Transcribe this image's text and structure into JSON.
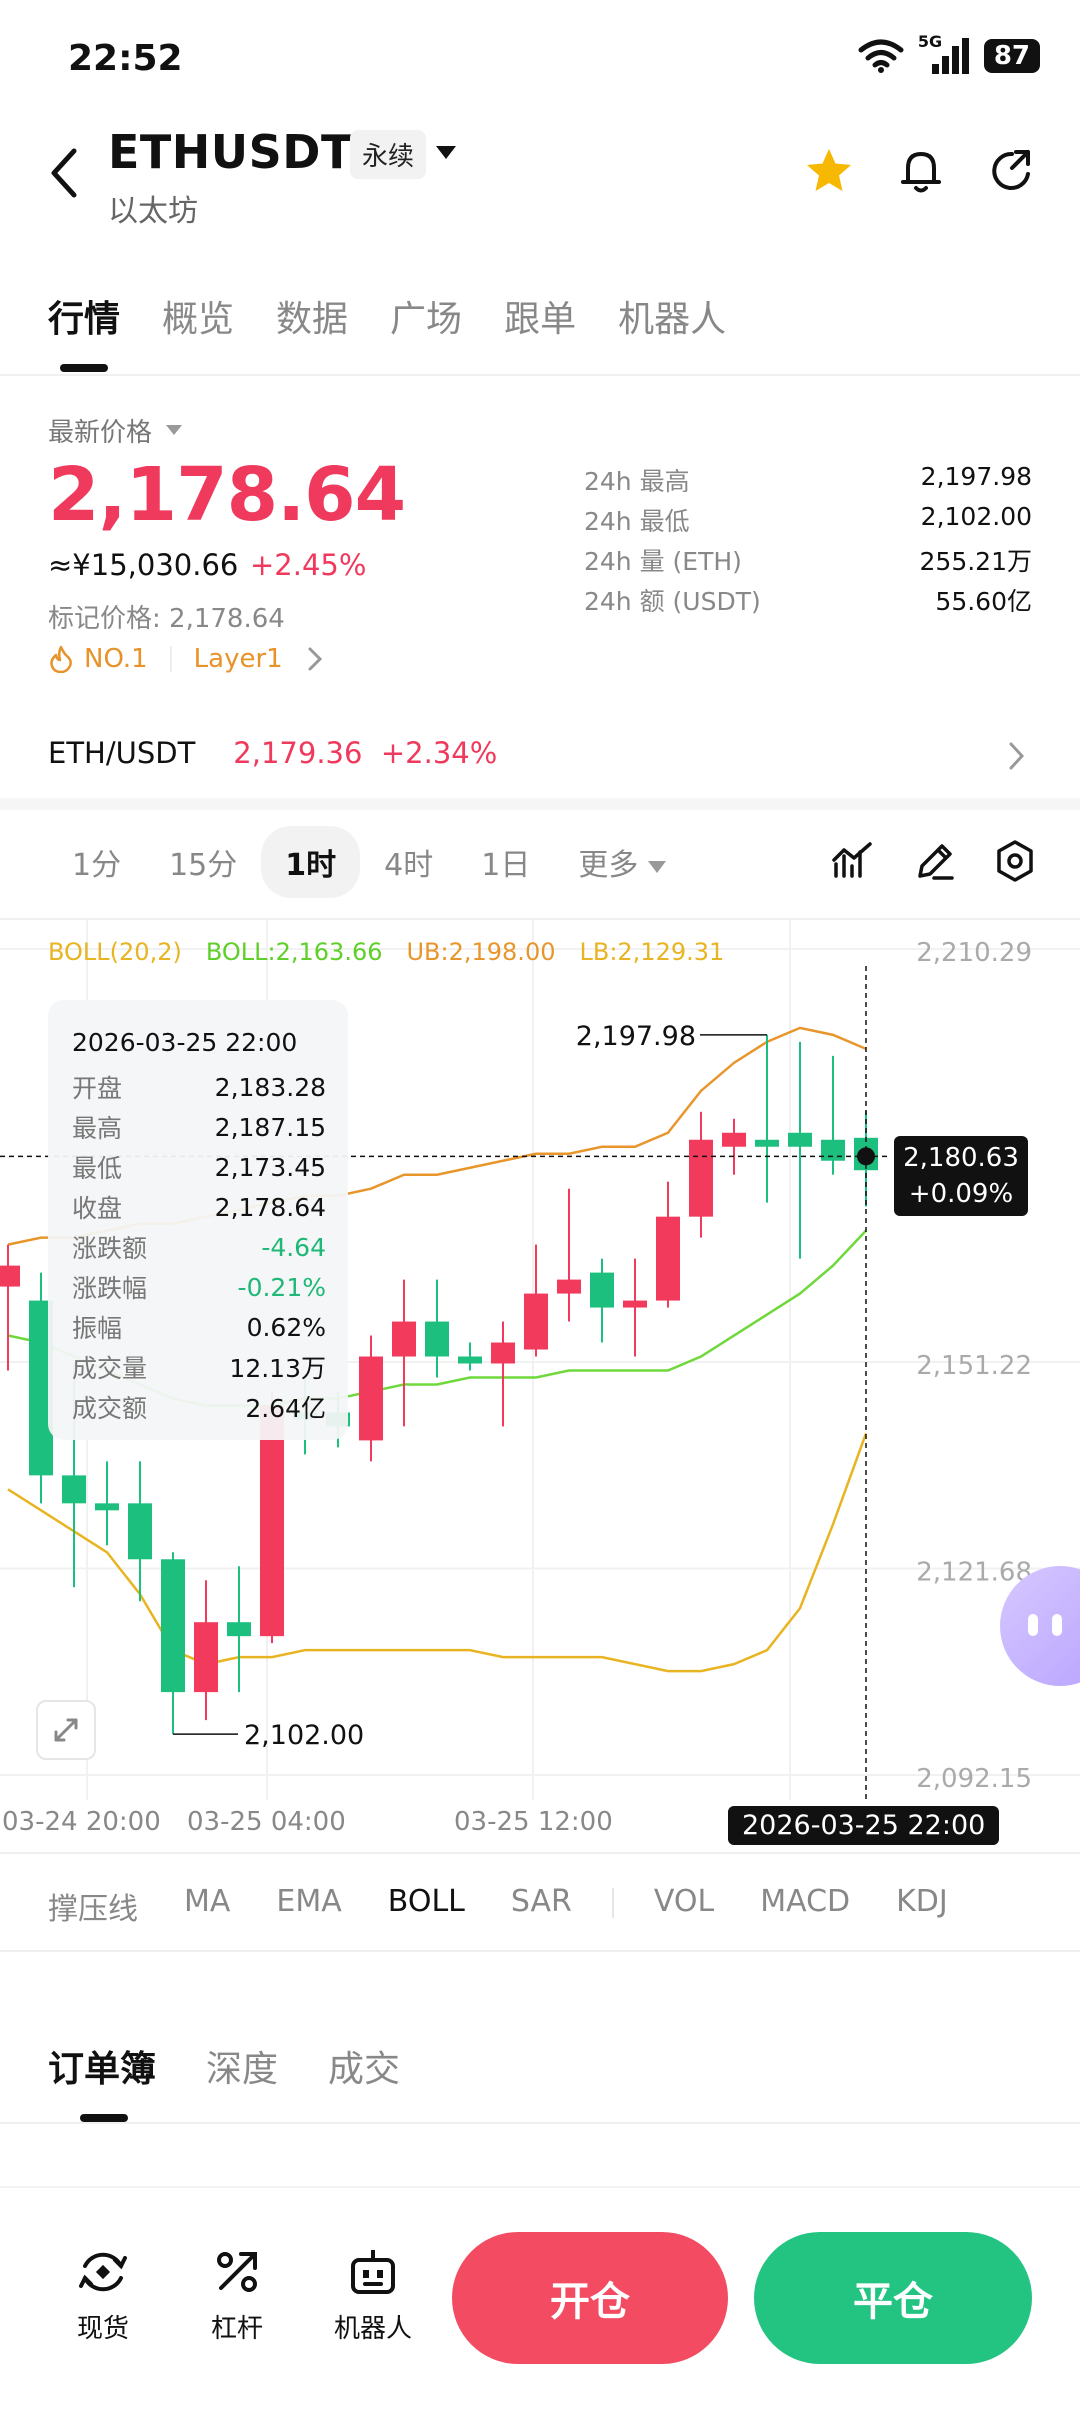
{
  "status_bar": {
    "time": "22:52",
    "network": "5G",
    "battery": "87"
  },
  "header": {
    "pair": "ETHUSDT",
    "contract_type": "永续",
    "subtitle": "以太坊"
  },
  "main_tabs": [
    {
      "label": "行情",
      "active": true
    },
    {
      "label": "概览"
    },
    {
      "label": "数据"
    },
    {
      "label": "广场"
    },
    {
      "label": "跟单"
    },
    {
      "label": "机器人"
    }
  ],
  "price": {
    "latest_label": "最新价格",
    "last": "2,178.64",
    "cny": "≈¥15,030.66",
    "change_pct": "+2.45%",
    "mark_price": "标记价格: 2,178.64",
    "tag_rank": "NO.1",
    "tag_sector": "Layer1"
  },
  "stats": [
    {
      "label": "24h  最高",
      "value": "2,197.98"
    },
    {
      "label": "24h  最低",
      "value": "2,102.00"
    },
    {
      "label": "24h  量 (ETH)",
      "value": "255.21万"
    },
    {
      "label": "24h  额 (USDT)",
      "value": "55.60亿"
    }
  ],
  "spot": {
    "pair": "ETH/USDT",
    "price": "2,179.36",
    "change": "+2.34%"
  },
  "intervals": [
    {
      "label": "1分"
    },
    {
      "label": "15分"
    },
    {
      "label": "1时",
      "active": true
    },
    {
      "label": "4时"
    },
    {
      "label": "1日"
    },
    {
      "label": "更多"
    }
  ],
  "boll_legend": {
    "name": "BOLL(20,2)",
    "mid": "BOLL:2,163.66",
    "ub": "UB:2,198.00",
    "lb": "LB:2,129.31"
  },
  "tooltip": {
    "date": "2026-03-25 22:00",
    "rows": [
      {
        "label": "开盘",
        "value": "2,183.28"
      },
      {
        "label": "最高",
        "value": "2,187.15"
      },
      {
        "label": "最低",
        "value": "2,173.45"
      },
      {
        "label": "收盘",
        "value": "2,178.64"
      },
      {
        "label": "涨跌额",
        "value": "-4.64",
        "green": true
      },
      {
        "label": "涨跌幅",
        "value": "-0.21%",
        "green": true
      },
      {
        "label": "振幅",
        "value": "0.62%"
      },
      {
        "label": "成交量",
        "value": "12.13万"
      },
      {
        "label": "成交额",
        "value": "2.64亿"
      }
    ]
  },
  "crosshair": {
    "price": "2,180.63",
    "pct": "+0.09%",
    "time": "2026-03-25 22:00"
  },
  "colors": {
    "up": "#f23b5c",
    "down": "#1dbf7f",
    "ub": "#e8962c",
    "mid": "#6fd83b",
    "lb": "#e8b422"
  },
  "chart_data": {
    "type": "candlestick",
    "interval": "1时",
    "y_ticks": [
      "2,210.29",
      "2,151.22",
      "2,121.68",
      "2,092.15"
    ],
    "y_tick_values": [
      2210.29,
      2151.22,
      2121.68,
      2092.15
    ],
    "x_ticks": [
      "03-24 20:00",
      "03-25 04:00",
      "03-25 12:00"
    ],
    "high_label": "2,197.98",
    "low_label": "2,102.00",
    "candles": [
      {
        "o": 2162,
        "c": 2165,
        "h": 2168,
        "l": 2150
      },
      {
        "o": 2160,
        "c": 2135,
        "h": 2164,
        "l": 2131
      },
      {
        "o": 2135,
        "c": 2131,
        "h": 2151,
        "l": 2119
      },
      {
        "o": 2131,
        "c": 2130,
        "h": 2137,
        "l": 2125
      },
      {
        "o": 2131,
        "c": 2123,
        "h": 2137,
        "l": 2117
      },
      {
        "o": 2123,
        "c": 2104,
        "h": 2124,
        "l": 2098
      },
      {
        "o": 2104,
        "c": 2114,
        "h": 2120,
        "l": 2100
      },
      {
        "o": 2114,
        "c": 2112,
        "h": 2122,
        "l": 2104
      },
      {
        "o": 2112,
        "c": 2145,
        "h": 2147,
        "l": 2111
      },
      {
        "o": 2144,
        "c": 2143,
        "h": 2149,
        "l": 2138
      },
      {
        "o": 2144,
        "c": 2142,
        "h": 2147,
        "l": 2139
      },
      {
        "o": 2140,
        "c": 2152,
        "h": 2155,
        "l": 2137
      },
      {
        "o": 2152,
        "c": 2157,
        "h": 2163,
        "l": 2142
      },
      {
        "o": 2157,
        "c": 2152,
        "h": 2163,
        "l": 2149
      },
      {
        "o": 2152,
        "c": 2151,
        "h": 2154,
        "l": 2150
      },
      {
        "o": 2151,
        "c": 2154,
        "h": 2157,
        "l": 2142
      },
      {
        "o": 2153,
        "c": 2161,
        "h": 2168,
        "l": 2152
      },
      {
        "o": 2161,
        "c": 2163,
        "h": 2176,
        "l": 2157
      },
      {
        "o": 2164,
        "c": 2159,
        "h": 2166,
        "l": 2154
      },
      {
        "o": 2159,
        "c": 2160,
        "h": 2166,
        "l": 2152
      },
      {
        "o": 2160,
        "c": 2172,
        "h": 2177,
        "l": 2159
      },
      {
        "o": 2172,
        "c": 2183,
        "h": 2187,
        "l": 2169
      },
      {
        "o": 2182,
        "c": 2184,
        "h": 2186,
        "l": 2178
      },
      {
        "o": 2183,
        "c": 2182,
        "h": 2198,
        "l": 2174
      },
      {
        "o": 2184,
        "c": 2182,
        "h": 2197,
        "l": 2166
      },
      {
        "o": 2183,
        "c": 2180,
        "h": 2195,
        "l": 2178
      },
      {
        "o": 2183.28,
        "c": 2178.64,
        "h": 2187.15,
        "l": 2173.45
      }
    ],
    "boll_ub": [
      2168,
      2169,
      2169,
      2170,
      2171,
      2171,
      2172,
      2173,
      2174,
      2175,
      2175,
      2176,
      2178,
      2178,
      2179,
      2180,
      2181,
      2181,
      2182,
      2182,
      2184,
      2190,
      2194,
      2197,
      2199,
      2198,
      2196
    ],
    "boll_mid": [
      2155,
      2154,
      2152,
      2150,
      2148,
      2146,
      2145,
      2145,
      2145,
      2146,
      2146,
      2147,
      2148,
      2148,
      2149,
      2149,
      2149,
      2150,
      2150,
      2150,
      2150,
      2152,
      2155,
      2158,
      2161,
      2165,
      2170
    ],
    "boll_lb": [
      2133,
      2130,
      2127,
      2124,
      2118,
      2110,
      2108,
      2109,
      2109,
      2110,
      2110,
      2110,
      2110,
      2110,
      2110,
      2109,
      2109,
      2109,
      2109,
      2108,
      2107,
      2107,
      2108,
      2110,
      2116,
      2128,
      2141
    ]
  },
  "indicators": [
    {
      "label": "撑压线"
    },
    {
      "label": "MA"
    },
    {
      "label": "EMA"
    },
    {
      "label": "BOLL",
      "active": true
    },
    {
      "label": "SAR"
    },
    {
      "label": "VOL"
    },
    {
      "label": "MACD"
    },
    {
      "label": "KDJ"
    }
  ],
  "orderbook_tabs": [
    {
      "label": "订单簿",
      "active": true
    },
    {
      "label": "深度"
    },
    {
      "label": "成交"
    }
  ],
  "bottom_nav": [
    {
      "label": "现货",
      "icon": "spot-icon"
    },
    {
      "label": "杠杆",
      "icon": "leverage-icon"
    },
    {
      "label": "机器人",
      "icon": "robot-icon"
    }
  ],
  "actions": {
    "open": "开仓",
    "close": "平仓"
  }
}
